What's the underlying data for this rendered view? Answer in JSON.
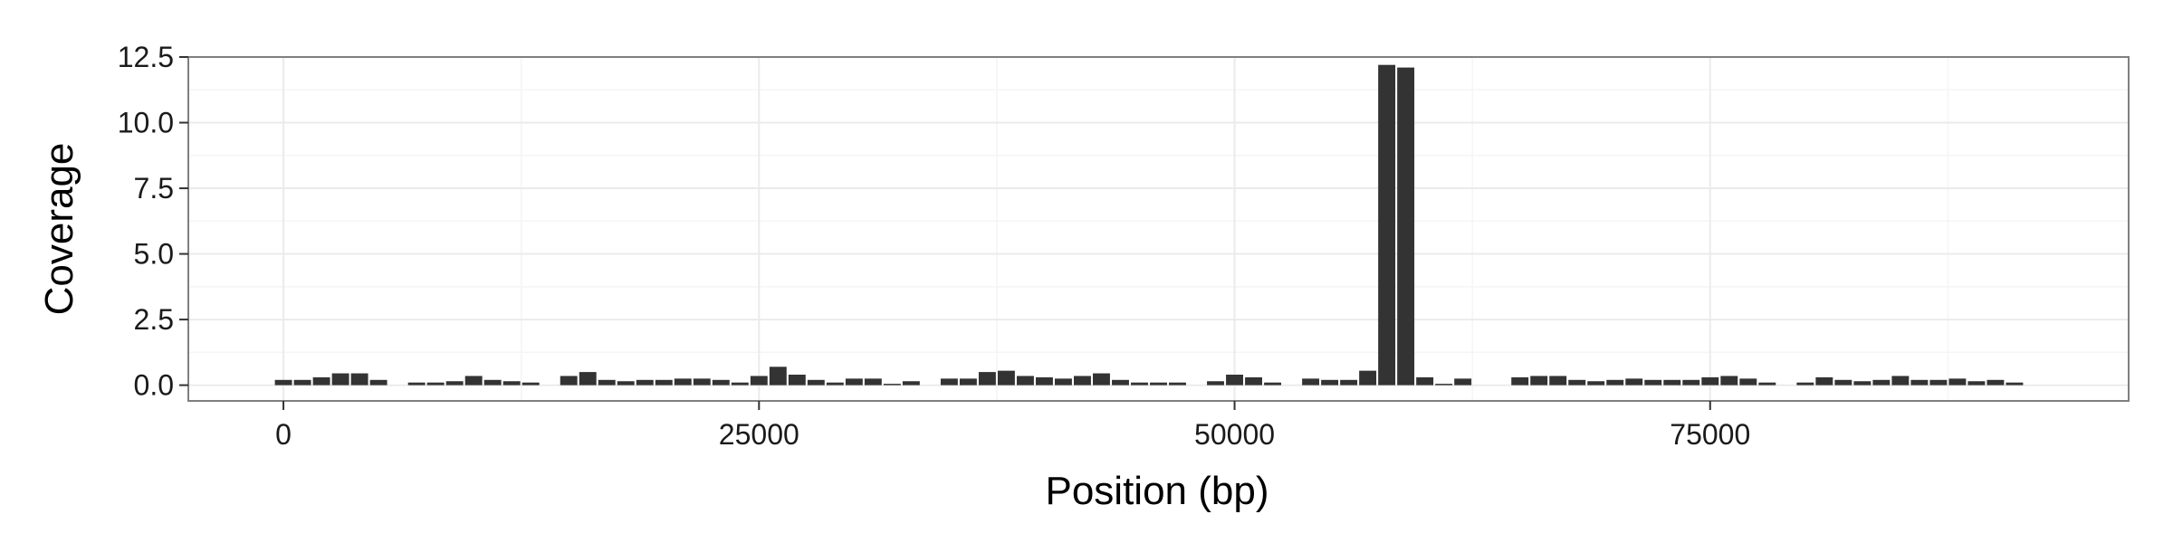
{
  "chart_data": {
    "type": "bar",
    "title": "",
    "xlabel": "Position (bp)",
    "ylabel": "Coverage",
    "xlim": [
      -5000,
      97000
    ],
    "ylim": [
      -0.6,
      12.5
    ],
    "x_ticks": [
      0,
      25000,
      50000,
      75000
    ],
    "x_tick_labels": [
      "0",
      "25000",
      "50000",
      "75000"
    ],
    "y_ticks": [
      0,
      2.5,
      5,
      7.5,
      10,
      12.5
    ],
    "y_tick_labels": [
      "0.0",
      "2.5",
      "5.0",
      "7.5",
      "10.0",
      "12.5"
    ],
    "bin_width": 1000,
    "grid": true,
    "bar_color": "#333333",
    "panel_border_color": "#7f7f7f",
    "grid_color": "#ebebeb",
    "x": [
      0,
      1000,
      2000,
      3000,
      4000,
      5000,
      7000,
      8000,
      9000,
      10000,
      11000,
      12000,
      13000,
      15000,
      16000,
      17000,
      18000,
      19000,
      20000,
      21000,
      22000,
      23000,
      24000,
      25000,
      26000,
      27000,
      28000,
      29000,
      30000,
      31000,
      32000,
      33000,
      35000,
      36000,
      37000,
      38000,
      39000,
      40000,
      41000,
      42000,
      43000,
      44000,
      45000,
      46000,
      47000,
      49000,
      50000,
      51000,
      52000,
      54000,
      55000,
      56000,
      57000,
      58000,
      59000,
      60000,
      61000,
      62000,
      65000,
      66000,
      67000,
      68000,
      69000,
      70000,
      71000,
      72000,
      73000,
      74000,
      75000,
      76000,
      77000,
      78000,
      80000,
      81000,
      82000,
      83000,
      84000,
      85000,
      86000,
      87000,
      88000,
      89000,
      90000,
      91000
    ],
    "values": [
      0.2,
      0.2,
      0.3,
      0.45,
      0.45,
      0.2,
      0.1,
      0.1,
      0.15,
      0.35,
      0.2,
      0.15,
      0.1,
      0.35,
      0.5,
      0.2,
      0.15,
      0.2,
      0.2,
      0.25,
      0.25,
      0.2,
      0.1,
      0.35,
      0.7,
      0.4,
      0.2,
      0.1,
      0.25,
      0.25,
      0.05,
      0.15,
      0.25,
      0.25,
      0.5,
      0.55,
      0.35,
      0.3,
      0.25,
      0.35,
      0.45,
      0.2,
      0.1,
      0.1,
      0.1,
      0.15,
      0.4,
      0.3,
      0.1,
      0.25,
      0.2,
      0.2,
      0.55,
      12.2,
      12.1,
      0.3,
      0.05,
      0.25,
      0.3,
      0.35,
      0.35,
      0.2,
      0.15,
      0.2,
      0.25,
      0.2,
      0.2,
      0.2,
      0.3,
      0.35,
      0.25,
      0.1,
      0.1,
      0.3,
      0.2,
      0.15,
      0.2,
      0.35,
      0.2,
      0.2,
      0.25,
      0.15,
      0.2,
      0.1
    ]
  }
}
